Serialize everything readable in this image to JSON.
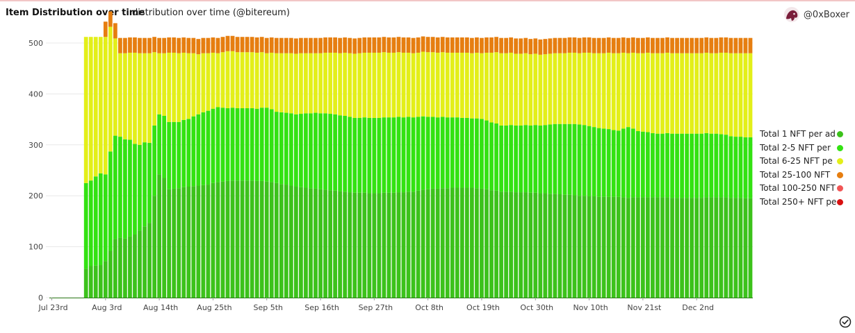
{
  "header": {
    "title": "Item Distribution over time",
    "subtitle": "distribution over time (@bitereum)",
    "user": "@0xBoxer"
  },
  "icons": {
    "avatar": "avatar-icon",
    "status": "check-circle-icon"
  },
  "chart_data": {
    "type": "bar",
    "stacked": true,
    "title": "Item Distribution over time",
    "subtitle": "distribution over time (@bitereum)",
    "xlabel": "",
    "ylabel": "",
    "ylim": [
      0,
      530
    ],
    "yticks": [
      0,
      100,
      200,
      300,
      400,
      500
    ],
    "grid": true,
    "legend_position": "right",
    "x_tick_labels": [
      "Jul 23rd",
      "Aug 3rd",
      "Aug 14th",
      "Aug 25th",
      "Sep 5th",
      "Sep 16th",
      "Sep 27th",
      "Oct 8th",
      "Oct 19th",
      "Oct 30th",
      "Nov 10th",
      "Nov 21st",
      "Dec 2nd"
    ],
    "x_start": "Jul 23rd",
    "num_bars": 144,
    "series": [
      {
        "name": "Total 1 NFT per ad",
        "color": "#3cc21b",
        "keypoints": [
          [
            0,
            0
          ],
          [
            6,
            0
          ],
          [
            7,
            57
          ],
          [
            8,
            62
          ],
          [
            9,
            63
          ],
          [
            10,
            64
          ],
          [
            11,
            72
          ],
          [
            12,
            92
          ],
          [
            13,
            115
          ],
          [
            14,
            118
          ],
          [
            15,
            116
          ],
          [
            16,
            120
          ],
          [
            17,
            124
          ],
          [
            18,
            132
          ],
          [
            19,
            140
          ],
          [
            20,
            147
          ],
          [
            21,
            200
          ],
          [
            22,
            242
          ],
          [
            23,
            235
          ],
          [
            24,
            213
          ],
          [
            26,
            215
          ],
          [
            28,
            218
          ],
          [
            32,
            222
          ],
          [
            34,
            227
          ],
          [
            37,
            230
          ],
          [
            40,
            230
          ],
          [
            44,
            228
          ],
          [
            46,
            225
          ],
          [
            50,
            218
          ],
          [
            54,
            214
          ],
          [
            58,
            210
          ],
          [
            62,
            206
          ],
          [
            66,
            205
          ],
          [
            70,
            206
          ],
          [
            74,
            208
          ],
          [
            76,
            212
          ],
          [
            80,
            215
          ],
          [
            84,
            216
          ],
          [
            86,
            216
          ],
          [
            88,
            214
          ],
          [
            92,
            208
          ],
          [
            96,
            207
          ],
          [
            100,
            205
          ],
          [
            104,
            203
          ],
          [
            108,
            200
          ],
          [
            112,
            198
          ],
          [
            116,
            198
          ],
          [
            118,
            196
          ],
          [
            120,
            197
          ],
          [
            124,
            197
          ],
          [
            128,
            196
          ],
          [
            132,
            196
          ],
          [
            136,
            197
          ],
          [
            140,
            196
          ],
          [
            143,
            195
          ]
        ]
      },
      {
        "name": "Total 2-5 NFT per",
        "color": "#33e212",
        "keypoints": [
          [
            0,
            0
          ],
          [
            6,
            0
          ],
          [
            7,
            168
          ],
          [
            8,
            168
          ],
          [
            9,
            175
          ],
          [
            10,
            180
          ],
          [
            11,
            170
          ],
          [
            12,
            195
          ],
          [
            13,
            203
          ],
          [
            14,
            198
          ],
          [
            15,
            195
          ],
          [
            16,
            190
          ],
          [
            17,
            178
          ],
          [
            18,
            168
          ],
          [
            19,
            165
          ],
          [
            20,
            157
          ],
          [
            21,
            138
          ],
          [
            22,
            118
          ],
          [
            23,
            122
          ],
          [
            24,
            132
          ],
          [
            26,
            130
          ],
          [
            28,
            133
          ],
          [
            30,
            140
          ],
          [
            32,
            145
          ],
          [
            34,
            147
          ],
          [
            36,
            143
          ],
          [
            38,
            142
          ],
          [
            40,
            142
          ],
          [
            42,
            142
          ],
          [
            44,
            145
          ],
          [
            46,
            140
          ],
          [
            50,
            142
          ],
          [
            54,
            149
          ],
          [
            58,
            150
          ],
          [
            62,
            147
          ],
          [
            66,
            148
          ],
          [
            70,
            148
          ],
          [
            74,
            146
          ],
          [
            78,
            141
          ],
          [
            82,
            138
          ],
          [
            86,
            136
          ],
          [
            88,
            137
          ],
          [
            90,
            133
          ],
          [
            92,
            130
          ],
          [
            96,
            131
          ],
          [
            100,
            133
          ],
          [
            104,
            138
          ],
          [
            108,
            140
          ],
          [
            112,
            135
          ],
          [
            116,
            130
          ],
          [
            118,
            139
          ],
          [
            120,
            130
          ],
          [
            124,
            125
          ],
          [
            128,
            126
          ],
          [
            132,
            126
          ],
          [
            136,
            125
          ],
          [
            140,
            120
          ],
          [
            143,
            120
          ]
        ]
      },
      {
        "name": "Total 6-25 NFT pe",
        "color": "#e3ef19",
        "keypoints": [
          [
            0,
            0
          ],
          [
            6,
            0
          ],
          [
            7,
            287
          ],
          [
            8,
            282
          ],
          [
            9,
            274
          ],
          [
            10,
            268
          ],
          [
            11,
            270
          ],
          [
            12,
            245
          ],
          [
            13,
            191
          ],
          [
            14,
            164
          ],
          [
            15,
            169
          ],
          [
            16,
            171
          ],
          [
            17,
            179
          ],
          [
            18,
            180
          ],
          [
            19,
            175
          ],
          [
            20,
            176
          ],
          [
            21,
            144
          ],
          [
            22,
            120
          ],
          [
            23,
            123
          ],
          [
            24,
            136
          ],
          [
            26,
            135
          ],
          [
            28,
            129
          ],
          [
            30,
            118
          ],
          [
            32,
            113
          ],
          [
            34,
            106
          ],
          [
            36,
            112
          ],
          [
            38,
            110
          ],
          [
            40,
            110
          ],
          [
            42,
            110
          ],
          [
            44,
            107
          ],
          [
            46,
            115
          ],
          [
            50,
            119
          ],
          [
            54,
            117
          ],
          [
            58,
            121
          ],
          [
            62,
            126
          ],
          [
            66,
            128
          ],
          [
            70,
            127
          ],
          [
            74,
            126
          ],
          [
            78,
            127
          ],
          [
            82,
            127
          ],
          [
            86,
            128
          ],
          [
            88,
            129
          ],
          [
            90,
            137
          ],
          [
            92,
            142
          ],
          [
            96,
            141
          ],
          [
            100,
            139
          ],
          [
            104,
            139
          ],
          [
            108,
            140
          ],
          [
            112,
            147
          ],
          [
            116,
            152
          ],
          [
            118,
            145
          ],
          [
            120,
            153
          ],
          [
            124,
            158
          ],
          [
            128,
            158
          ],
          [
            132,
            158
          ],
          [
            136,
            158
          ],
          [
            140,
            164
          ],
          [
            143,
            165
          ]
        ]
      },
      {
        "name": "Total 25-100 NFT",
        "color": "#e67e10",
        "keypoints": [
          [
            0,
            0
          ],
          [
            10,
            0
          ],
          [
            11,
            30
          ],
          [
            143,
            30
          ]
        ]
      },
      {
        "name": "Total 100-250 NFT",
        "color": "#f15555",
        "keypoints": [
          [
            0,
            0
          ],
          [
            143,
            0
          ]
        ]
      },
      {
        "name": "Total 250+ NFT pe",
        "color": "#d81010",
        "keypoints": [
          [
            0,
            0
          ],
          [
            143,
            0
          ]
        ]
      }
    ]
  }
}
